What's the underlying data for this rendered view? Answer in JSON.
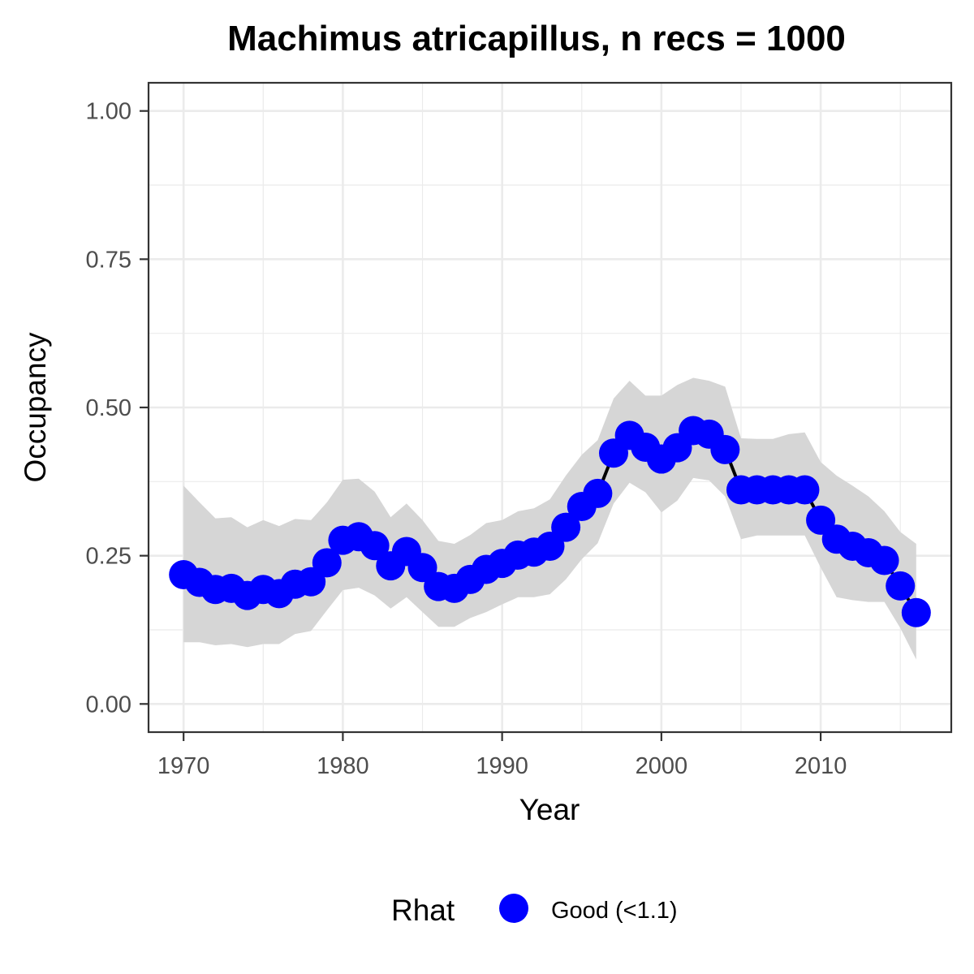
{
  "chart_data": {
    "type": "line",
    "title": "Machimus atricapillus, n recs = 1000",
    "xlabel": "Year",
    "ylabel": "Occupancy",
    "xlim": [
      1967.8,
      2018.2
    ],
    "ylim": [
      -0.0475,
      1.0475
    ],
    "x_ticks": [
      1970,
      1980,
      1990,
      2000,
      2010
    ],
    "x_tick_labels": [
      "1970",
      "1980",
      "1990",
      "2000",
      "2010"
    ],
    "x_minor_ticks": [
      1975,
      1985,
      1995,
      2005,
      2015
    ],
    "y_ticks": [
      0,
      0.25,
      0.5,
      0.75,
      1
    ],
    "y_tick_labels": [
      "0.00",
      "0.25",
      "0.50",
      "0.75",
      "1.00"
    ],
    "y_minor_ticks": [
      0.125,
      0.375,
      0.625,
      0.875
    ],
    "grid": true,
    "colors": {
      "point": "#0000ff",
      "line": "#000000",
      "ribbon": "#d6d6d6",
      "grid": "#ebebeb",
      "panel_border": "#333333",
      "tick_text": "#4d4d4d"
    },
    "legend": {
      "title": "Rhat",
      "position": "bottom",
      "entries": [
        {
          "label": "Good (<1.1)",
          "color": "#0000ff"
        }
      ]
    },
    "series": [
      {
        "x": [
          1970,
          1971,
          1972,
          1973,
          1974,
          1975,
          1976,
          1977,
          1978,
          1979,
          1980,
          1981,
          1982,
          1983,
          1984,
          1985,
          1986,
          1987,
          1988,
          1989,
          1990,
          1991,
          1992,
          1993,
          1994,
          1995,
          1996,
          1997,
          1998,
          1999,
          2000,
          2001,
          2002,
          2003,
          2004,
          2005,
          2006,
          2007,
          2008,
          2009,
          2010,
          2011,
          2012,
          2013,
          2014,
          2015,
          2016
        ],
        "y": [
          0.218,
          0.205,
          0.193,
          0.195,
          0.183,
          0.193,
          0.186,
          0.202,
          0.206,
          0.238,
          0.276,
          0.282,
          0.267,
          0.233,
          0.257,
          0.23,
          0.198,
          0.195,
          0.21,
          0.227,
          0.237,
          0.251,
          0.256,
          0.266,
          0.298,
          0.333,
          0.355,
          0.423,
          0.453,
          0.433,
          0.413,
          0.432,
          0.461,
          0.455,
          0.429,
          0.361,
          0.361,
          0.361,
          0.361,
          0.361,
          0.31,
          0.278,
          0.266,
          0.255,
          0.242,
          0.199,
          0.154
        ],
        "lower": [
          0.104,
          0.104,
          0.099,
          0.101,
          0.096,
          0.101,
          0.101,
          0.118,
          0.123,
          0.158,
          0.192,
          0.196,
          0.183,
          0.161,
          0.18,
          0.155,
          0.13,
          0.13,
          0.145,
          0.155,
          0.168,
          0.18,
          0.18,
          0.185,
          0.21,
          0.244,
          0.271,
          0.338,
          0.373,
          0.357,
          0.323,
          0.343,
          0.381,
          0.377,
          0.35,
          0.278,
          0.284,
          0.284,
          0.284,
          0.284,
          0.23,
          0.18,
          0.175,
          0.172,
          0.172,
          0.128,
          0.075
        ],
        "upper": [
          0.368,
          0.34,
          0.313,
          0.315,
          0.298,
          0.31,
          0.3,
          0.312,
          0.31,
          0.34,
          0.378,
          0.38,
          0.358,
          0.315,
          0.338,
          0.31,
          0.275,
          0.27,
          0.285,
          0.305,
          0.31,
          0.325,
          0.33,
          0.345,
          0.385,
          0.42,
          0.445,
          0.515,
          0.545,
          0.52,
          0.52,
          0.538,
          0.55,
          0.545,
          0.535,
          0.448,
          0.447,
          0.447,
          0.455,
          0.458,
          0.408,
          0.385,
          0.368,
          0.35,
          0.325,
          0.29,
          0.27
        ]
      }
    ]
  }
}
